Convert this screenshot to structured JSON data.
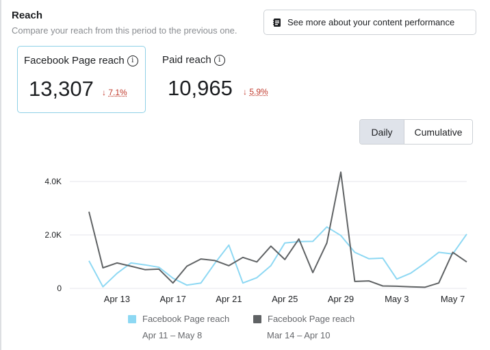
{
  "header": {
    "title": "Reach",
    "subtitle": "Compare your reach from this period to the previous one.",
    "performance_button_label": "See more about your content performance"
  },
  "metrics": [
    {
      "label": "Facebook Page reach",
      "value": "13,307",
      "arrow": "↓",
      "change": "7.1%",
      "info": "i"
    },
    {
      "label": "Paid reach",
      "value": "10,965",
      "arrow": "↓",
      "change": "5.9%",
      "info": "i"
    }
  ],
  "toggle": {
    "daily_label": "Daily",
    "cumulative_label": "Cumulative",
    "selected": "Daily"
  },
  "colors": {
    "current": "#8dd8f3",
    "previous": "#5f6264",
    "grid": "#e4e6eb",
    "negative": "#c0392b"
  },
  "chart_data": {
    "type": "line",
    "title": "",
    "xlabel": "",
    "ylabel": "",
    "ylim": [
      0,
      4000
    ],
    "yticks": [
      {
        "value": 0,
        "label": "0"
      },
      {
        "value": 2000,
        "label": "2.0K"
      },
      {
        "value": 4000,
        "label": "4.0K"
      }
    ],
    "x_tick_labels": [
      {
        "index": 2,
        "label": "Apr 13"
      },
      {
        "index": 6,
        "label": "Apr 17"
      },
      {
        "index": 10,
        "label": "Apr 21"
      },
      {
        "index": 14,
        "label": "Apr 25"
      },
      {
        "index": 18,
        "label": "Apr 29"
      },
      {
        "index": 22,
        "label": "May 3"
      },
      {
        "index": 26,
        "label": "May 7"
      }
    ],
    "series": [
      {
        "name": "Facebook Page reach",
        "range": "Apr 11 – May 8",
        "color": "#8dd8f3",
        "values": [
          1030,
          60,
          560,
          950,
          880,
          790,
          380,
          120,
          200,
          940,
          1620,
          200,
          400,
          850,
          1700,
          1750,
          1760,
          2300,
          1980,
          1350,
          1110,
          1130,
          350,
          570,
          940,
          1350,
          1290,
          2030
        ]
      },
      {
        "name": "Facebook Page reach",
        "range": "Mar 14 – Apr 10",
        "color": "#5f6264",
        "values": [
          2870,
          770,
          950,
          830,
          700,
          720,
          200,
          830,
          1100,
          1040,
          850,
          1160,
          990,
          1580,
          1080,
          1850,
          590,
          1700,
          4350,
          260,
          280,
          90,
          80,
          60,
          40,
          200,
          1350,
          990
        ]
      }
    ]
  }
}
